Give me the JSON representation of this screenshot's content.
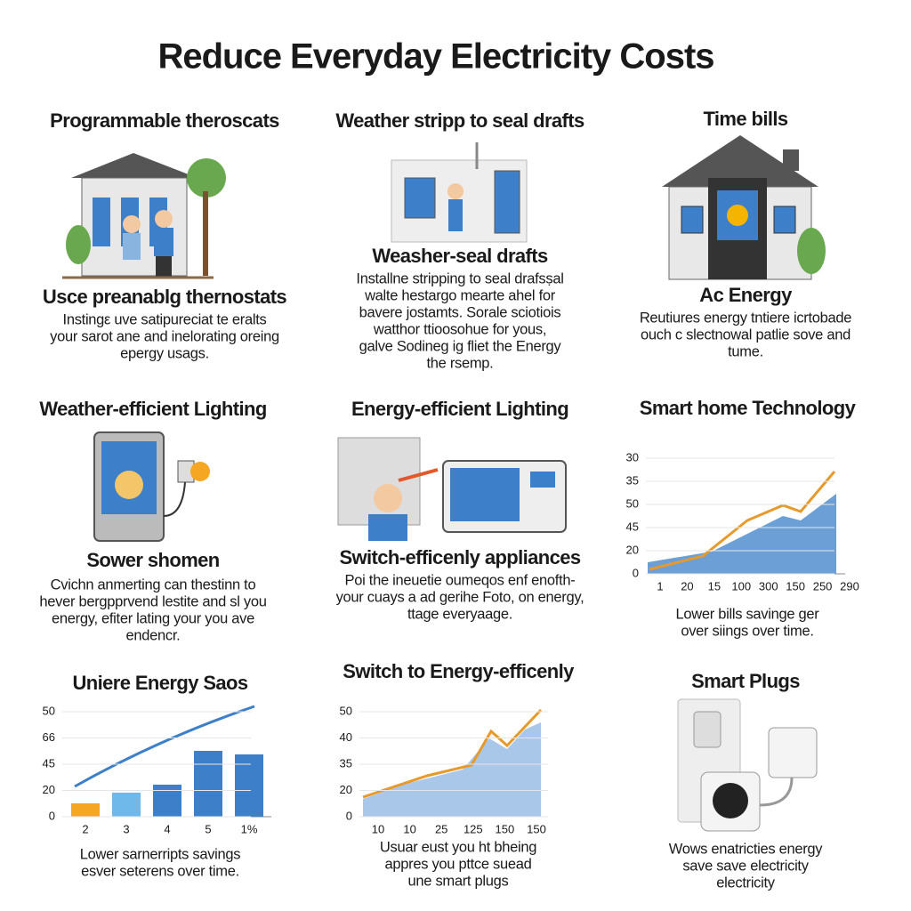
{
  "title": "Reduce Everyday Electricity Costs",
  "cells": [
    {
      "heading": "Programmable theroscats",
      "subheading": "Usce preanablg thernostats",
      "body": [
        "Instingε uve satipureciat te eralts",
        "your sarot ane and inelorating oreing",
        "epergy usags."
      ]
    },
    {
      "heading": "Weather stripp to seal drafts",
      "subheading": "Weasher-seal drafts",
      "body": [
        "Installne stripping to seal drafsṣal",
        "walte hestargo mearte ahel for",
        "bavere jostamts. Sorale sciotiois",
        "watthor ttioosohue for yous,",
        "galve Sodineg ig fliet the Energy",
        "the rsemp."
      ]
    },
    {
      "heading": "Time bills",
      "subheading": "Ac Energy",
      "body": [
        "Reutiures energy tntiere icrtobade",
        "ouch c slectnowal patlie sove and",
        "tume."
      ]
    },
    {
      "heading": "Weather-efficient Lighting",
      "subheading": "Sower shomen",
      "body": [
        "Cvichn anmerting can thestinn to",
        "hever bergpprvend lestite and sl you",
        "energy, efiter lating your you ave",
        "endencr."
      ]
    },
    {
      "heading": "Energy-efficient Lighting",
      "subheading": "Switch-efficenly appliances",
      "body": [
        "Poi the ineuetie oumeqos enf enofth-",
        "your cuays a ad gerihe Foto, on energy,",
        "ttage everyaage."
      ]
    },
    {
      "heading": "Smart home Technology",
      "y_labels": [
        "30",
        "35",
        "50",
        "45",
        "20",
        "0"
      ],
      "x_labels": [
        "1",
        "20",
        "15",
        "100",
        "300",
        "150",
        "250",
        "290"
      ],
      "body": [
        "Lower bills savinge ger",
        "over siings over time."
      ]
    },
    {
      "heading": "Uniere Energy Saos",
      "y_labels": [
        "50",
        "66",
        "45",
        "20",
        "0"
      ],
      "x_labels": [
        "2",
        "3",
        "4",
        "5",
        "1%"
      ],
      "body": [
        "Lower sarnerripts savings",
        "esver seterens over time."
      ]
    },
    {
      "heading": "Switch to Energy-efficenly",
      "y_labels": [
        "50",
        "40",
        "35",
        "20",
        "0"
      ],
      "x_labels": [
        "10",
        "10",
        "25",
        "125",
        "150",
        "150"
      ],
      "body": [
        "Usuar eust you ht bheing",
        "appres you pttce suead",
        "une smart plugs"
      ]
    },
    {
      "heading": "Smart Plugs",
      "body": [
        "Wows enatricties energy",
        "save save electricity",
        "electricity"
      ]
    }
  ]
}
